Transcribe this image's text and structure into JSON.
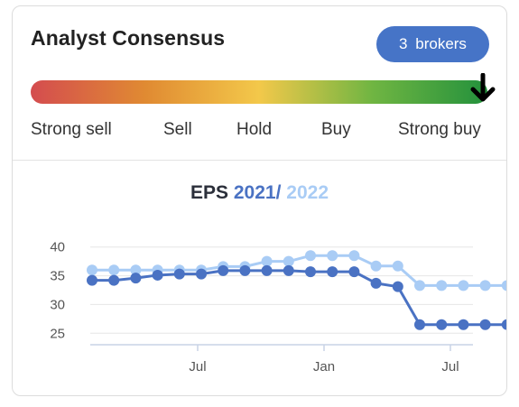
{
  "header": {
    "title": "Analyst Consensus",
    "brokers_count": "3",
    "brokers_label": "brokers"
  },
  "consensus_scale": {
    "labels": [
      "Strong sell",
      "Sell",
      "Hold",
      "Buy",
      "Strong buy"
    ],
    "current_rating": "Strong buy",
    "marker_icon": "arrow-down-icon",
    "gradient_colors": [
      "#d44c4f",
      "#e08a32",
      "#f3c84a",
      "#6fb542",
      "#23913c"
    ]
  },
  "chart_data": {
    "type": "line",
    "title_prefix": "EPS",
    "title_separator": "/",
    "x_ticks": [
      "Jul",
      "Jan",
      "Jul"
    ],
    "y_ticks": [
      "40",
      "35",
      "30",
      "25"
    ],
    "ylim": [
      23,
      42
    ],
    "series": [
      {
        "name": "2021",
        "color": "#4a72c3",
        "values": [
          34.2,
          34.2,
          34.6,
          35.1,
          35.3,
          35.3,
          35.9,
          35.9,
          35.9,
          35.9,
          35.7,
          35.7,
          35.7,
          33.7,
          33.1,
          26.5,
          26.5,
          26.5,
          26.5,
          26.5
        ]
      },
      {
        "name": "2022",
        "color": "#a9ccf5",
        "values": [
          36.0,
          36.0,
          36.0,
          36.0,
          36.0,
          36.0,
          36.6,
          36.6,
          37.5,
          37.5,
          38.5,
          38.5,
          38.5,
          36.7,
          36.7,
          33.3,
          33.3,
          33.3,
          33.3,
          33.3
        ]
      }
    ]
  }
}
